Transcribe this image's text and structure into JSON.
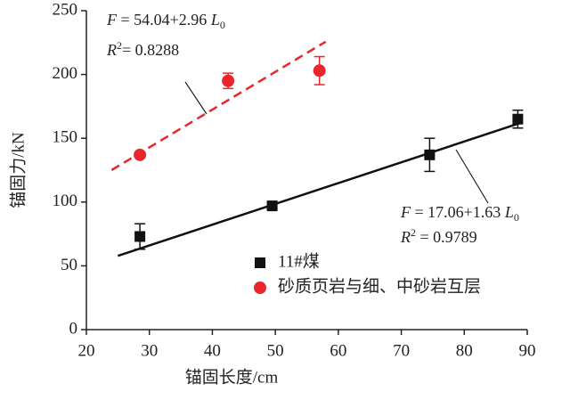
{
  "chart_data": {
    "type": "scatter",
    "x_label": "锚固长度/cm",
    "y_label": "锚固力/kN",
    "xlim": [
      20,
      90
    ],
    "xticks": [
      20,
      30,
      40,
      50,
      60,
      70,
      80,
      90
    ],
    "ylim": [
      0,
      250
    ],
    "yticks": [
      0,
      50,
      100,
      150,
      200,
      250
    ],
    "series": [
      {
        "name": "11#煤",
        "color": "#111111",
        "marker": "square",
        "x": [
          28.5,
          49.5,
          74.5,
          88.5
        ],
        "values": [
          73,
          97,
          137,
          165
        ],
        "errors": [
          10,
          2,
          13,
          7
        ],
        "fit": {
          "intercept": 17.06,
          "slope": 1.63,
          "x": [
            25,
            89
          ],
          "dashed": false,
          "equation": {
            "lhs": "F",
            "rhs": " = 17.06+1.63 ",
            "var": "L",
            "sub": "0"
          },
          "r2": {
            "sym": "R",
            "sup": "2",
            "rhs": " = 0.9789"
          }
        }
      },
      {
        "name": "砂质页岩与细、中砂岩互层",
        "color": "#e8262b",
        "marker": "circle",
        "x": [
          28.5,
          42.5,
          57
        ],
        "values": [
          137,
          195,
          203
        ],
        "errors": [
          2,
          6,
          11
        ],
        "fit": {
          "intercept": 54.04,
          "slope": 2.96,
          "x": [
            24,
            58
          ],
          "dashed": true,
          "equation": {
            "lhs": "F",
            "rhs": " = 54.04+2.96 ",
            "var": "L",
            "sub": "0"
          },
          "r2": {
            "sym": "R",
            "sup": "2",
            "rhs": "= 0.8288"
          }
        }
      }
    ]
  }
}
